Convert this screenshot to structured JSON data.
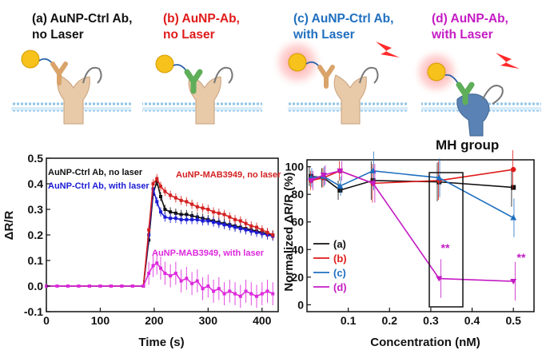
{
  "colors": {
    "a": "#111111",
    "b": "#e01a1a",
    "c": "#1f6fbf",
    "d": "#c41bc4",
    "neg": "#1c1cd6",
    "mabc": "#d42020",
    "mabd": "#dd2add"
  },
  "panels": [
    {
      "label1": "(a) AuNP-Ctrl Ab,",
      "label2": "no Laser"
    },
    {
      "label1": "(b) AuNP-Ab,",
      "label2": "no Laser"
    },
    {
      "label1": "(c) AuNP-Ctrl Ab,",
      "label2": "with Laser"
    },
    {
      "label1": "(d) AuNP-Ab,",
      "label2": "with Laser"
    }
  ],
  "mh_label": "MH group",
  "chart_data": [
    {
      "type": "line",
      "xlabel": "Time (s)",
      "ylabel": "ΔR/R",
      "xlim": [
        0,
        430
      ],
      "ylim": [
        -0.1,
        0.5
      ],
      "xticks": [
        "0",
        "100",
        "200",
        "300",
        "400"
      ],
      "yticks": [
        "-0.1",
        "0.0",
        "0.1",
        "0.2",
        "0.3",
        "0.4",
        "0.5"
      ],
      "series": [
        {
          "name": "AuNP-Ctrl Ab, no laser",
          "color": "#111111",
          "x": [
            0,
            20,
            40,
            60,
            80,
            100,
            120,
            140,
            160,
            180,
            190,
            198,
            205,
            212,
            220,
            230,
            240,
            250,
            260,
            270,
            280,
            290,
            300,
            310,
            320,
            330,
            340,
            350,
            360,
            370,
            380,
            390,
            400,
            410,
            420
          ],
          "y": [
            0,
            0,
            0,
            0,
            0,
            0,
            0,
            0,
            0,
            0,
            0.18,
            0.36,
            0.41,
            0.35,
            0.3,
            0.29,
            0.285,
            0.28,
            0.28,
            0.275,
            0.27,
            0.265,
            0.26,
            0.255,
            0.25,
            0.245,
            0.24,
            0.235,
            0.23,
            0.225,
            0.22,
            0.215,
            0.21,
            0.205,
            0.2
          ]
        },
        {
          "name": "AuNP-Ctrl Ab, with laser",
          "color": "#1c1cd6",
          "x": [
            0,
            20,
            40,
            60,
            80,
            100,
            120,
            140,
            160,
            180,
            190,
            198,
            205,
            212,
            220,
            230,
            240,
            250,
            260,
            270,
            280,
            290,
            300,
            310,
            320,
            330,
            340,
            350,
            360,
            370,
            380,
            390,
            400,
            410,
            420
          ],
          "y": [
            0,
            0,
            0,
            0,
            0,
            0,
            0,
            0,
            0,
            0,
            0.2,
            0.38,
            0.33,
            0.29,
            0.27,
            0.265,
            0.265,
            0.26,
            0.26,
            0.26,
            0.26,
            0.255,
            0.255,
            0.25,
            0.245,
            0.24,
            0.235,
            0.23,
            0.225,
            0.22,
            0.215,
            0.21,
            0.205,
            0.2,
            0.195
          ]
        },
        {
          "name": "AuNP-MAB3949, no laser",
          "color": "#d42020",
          "x": [
            0,
            20,
            40,
            60,
            80,
            100,
            120,
            140,
            160,
            180,
            190,
            198,
            205,
            212,
            220,
            230,
            240,
            250,
            260,
            270,
            280,
            290,
            300,
            310,
            320,
            330,
            340,
            350,
            360,
            370,
            380,
            390,
            400,
            410,
            420
          ],
          "y": [
            0,
            0,
            0,
            0,
            0,
            0,
            0,
            0,
            0,
            0,
            0.22,
            0.4,
            0.42,
            0.39,
            0.37,
            0.355,
            0.345,
            0.335,
            0.33,
            0.32,
            0.31,
            0.305,
            0.3,
            0.29,
            0.285,
            0.28,
            0.27,
            0.26,
            0.255,
            0.245,
            0.235,
            0.23,
            0.22,
            0.21,
            0.2
          ]
        },
        {
          "name": "AuNP-MAB3949, with laser",
          "color": "#dd2add",
          "x": [
            0,
            20,
            40,
            60,
            80,
            100,
            120,
            140,
            160,
            180,
            190,
            198,
            205,
            212,
            220,
            230,
            240,
            250,
            260,
            270,
            280,
            290,
            300,
            310,
            320,
            330,
            340,
            350,
            360,
            370,
            380,
            390,
            400,
            410,
            420
          ],
          "y": [
            0,
            0,
            0,
            0,
            0,
            0,
            0,
            0,
            0,
            0,
            0.05,
            0.08,
            0.09,
            0.07,
            0.05,
            0.04,
            0.05,
            0.02,
            0.03,
            0.01,
            0.02,
            -0.01,
            0.0,
            -0.02,
            -0.01,
            -0.03,
            -0.02,
            -0.03,
            -0.04,
            -0.02,
            -0.03,
            -0.04,
            -0.03,
            -0.02,
            -0.03
          ]
        }
      ]
    },
    {
      "type": "line",
      "xlabel": "Concentration (nM)",
      "ylabel": "Normalized ΔR/R (%)",
      "xlim": [
        0,
        0.55
      ],
      "ylim": [
        -5,
        105
      ],
      "xticks": [
        "0.1",
        "0.2",
        "0.3",
        "0.4",
        "0.5"
      ],
      "yticks": [
        "0",
        "20",
        "40",
        "60",
        "80",
        "100"
      ],
      "series": [
        {
          "name": "(a)",
          "color": "#111111",
          "x": [
            0.01,
            0.04,
            0.08,
            0.16,
            0.32,
            0.5
          ],
          "y": [
            93,
            92,
            83,
            90,
            89,
            85
          ]
        },
        {
          "name": "(b)",
          "color": "#e01a1a",
          "x": [
            0.01,
            0.04,
            0.08,
            0.16,
            0.32,
            0.5
          ],
          "y": [
            90,
            92,
            97,
            88,
            90,
            98
          ]
        },
        {
          "name": "(c)",
          "color": "#1f6fbf",
          "x": [
            0.01,
            0.04,
            0.08,
            0.16,
            0.32,
            0.5
          ],
          "y": [
            92,
            93,
            86,
            97,
            92,
            63
          ]
        },
        {
          "name": "(d)",
          "color": "#c41bc4",
          "x": [
            0.01,
            0.04,
            0.08,
            0.16,
            0.32,
            0.5
          ],
          "y": [
            90,
            94,
            97,
            88,
            19,
            17
          ]
        }
      ],
      "annotations": [
        "**",
        "**"
      ]
    }
  ]
}
